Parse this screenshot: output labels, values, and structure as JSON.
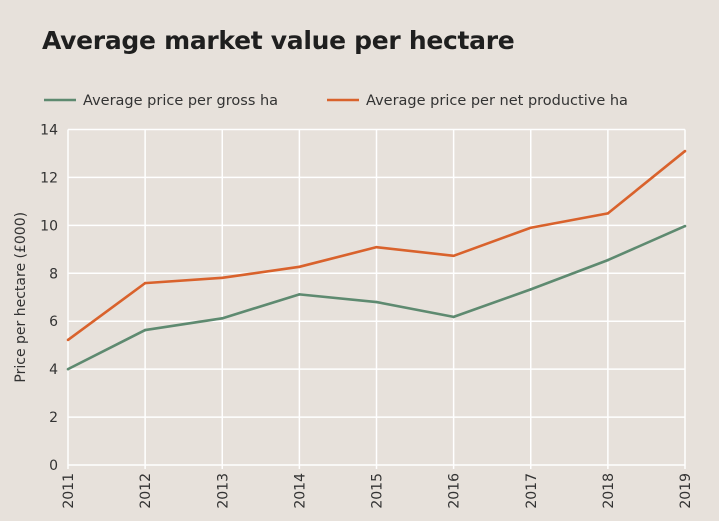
{
  "chart_data": {
    "type": "line",
    "title": "Average market value per hectare",
    "xlabel": "",
    "ylabel": "Price per hectare (£000)",
    "x": [
      "2011",
      "2012",
      "2013",
      "2014",
      "2015",
      "2016",
      "2017",
      "2018",
      "2019"
    ],
    "ylim": [
      0,
      14
    ],
    "yticks": [
      "0",
      "2",
      "4",
      "6",
      "8",
      "10",
      "12",
      "14"
    ],
    "grid": true,
    "legend": "top",
    "series": [
      {
        "name": "Average price per gross ha",
        "color": "#5e8a70",
        "values": [
          4.0,
          5.63,
          6.12,
          7.12,
          6.8,
          6.18,
          7.33,
          8.55,
          9.97
        ]
      },
      {
        "name": "Average price per net productive ha",
        "color": "#d9622c",
        "values": [
          5.22,
          7.59,
          7.81,
          8.27,
          9.09,
          8.73,
          9.9,
          10.5,
          13.1
        ]
      }
    ]
  }
}
